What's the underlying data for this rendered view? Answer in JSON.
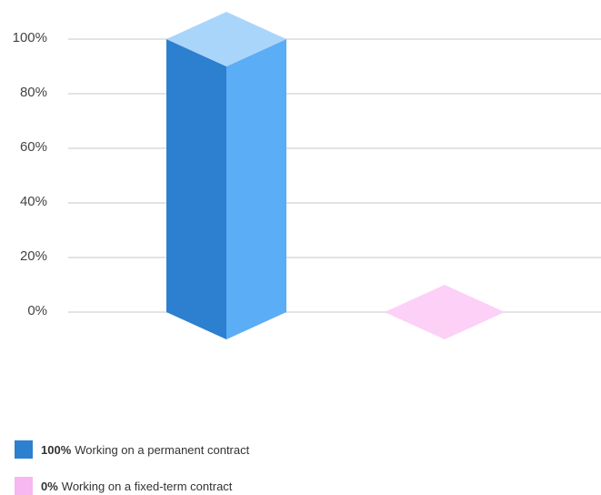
{
  "chart_data": {
    "type": "bar",
    "ylim": [
      0,
      100
    ],
    "yticks": [
      "0%",
      "20%",
      "40%",
      "60%",
      "80%",
      "100%"
    ],
    "grid": true,
    "legend_placement": "bottom-left",
    "series": [
      {
        "value": 100,
        "value_label": "100%",
        "label": "Working on a permanent contract",
        "color_front": "#2d7fd0",
        "color_side": "#5badf5",
        "color_top": "#aad5fb"
      },
      {
        "value": 0,
        "value_label": "0%",
        "label": "Working on a fixed-term contract",
        "color_front": "#f7b7f0",
        "color_side": "#fbc8f5",
        "color_top": "#fcd0f7"
      }
    ]
  }
}
